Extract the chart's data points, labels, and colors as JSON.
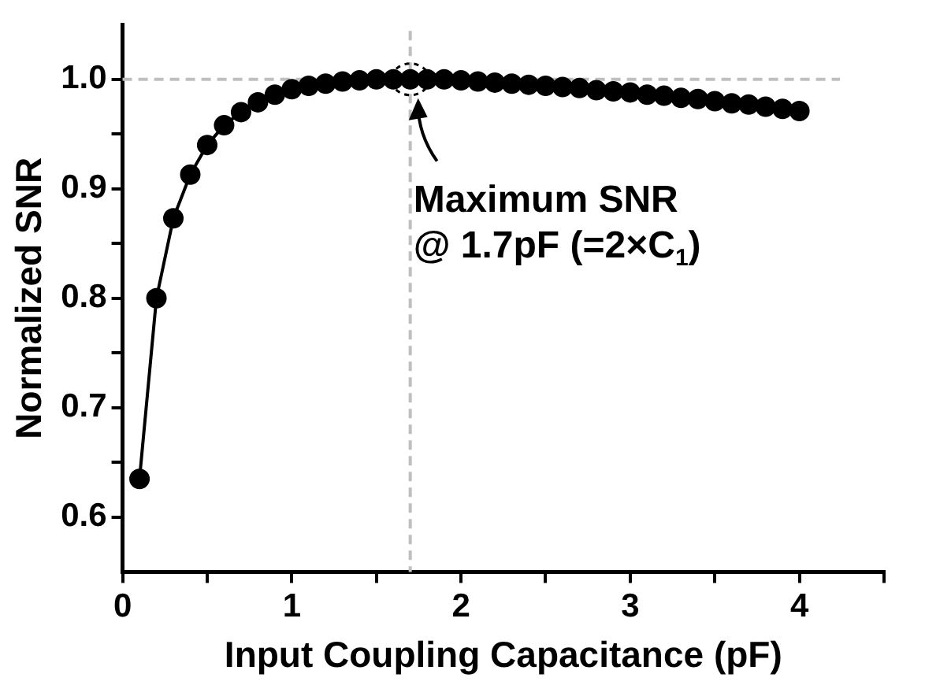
{
  "chart_data": {
    "type": "line",
    "xlabel": "Input Coupling Capacitance (pF)",
    "ylabel": "Normalized SNR",
    "x": [
      0.1,
      0.2,
      0.3,
      0.4,
      0.5,
      0.6,
      0.7,
      0.8,
      0.9,
      1.0,
      1.1,
      1.2,
      1.3,
      1.4,
      1.5,
      1.6,
      1.7,
      1.8,
      1.9,
      2.0,
      2.1,
      2.2,
      2.3,
      2.4,
      2.5,
      2.6,
      2.7,
      2.8,
      2.9,
      3.0,
      3.1,
      3.2,
      3.3,
      3.4,
      3.5,
      3.6,
      3.7,
      3.8,
      3.9,
      4.0
    ],
    "series": [
      {
        "color": "#000000",
        "values": [
          0.635,
          0.8,
          0.873,
          0.913,
          0.94,
          0.958,
          0.97,
          0.979,
          0.986,
          0.991,
          0.994,
          0.996,
          0.998,
          0.999,
          1.0,
          1.0,
          1.0,
          1.0,
          1.0,
          0.999,
          0.998,
          0.997,
          0.996,
          0.995,
          0.994,
          0.993,
          0.992,
          0.99,
          0.989,
          0.988,
          0.986,
          0.985,
          0.983,
          0.982,
          0.98,
          0.978,
          0.977,
          0.975,
          0.973,
          0.971
        ]
      }
    ],
    "xlim": [
      0,
      4.5
    ],
    "ylim": [
      0.55,
      1.05
    ],
    "xticks": [
      0,
      {
        "value": 0.5,
        "label": null
      },
      1,
      {
        "value": 1.5,
        "label": null
      },
      2,
      {
        "value": 2.5,
        "label": null
      },
      3,
      {
        "value": 3.5,
        "label": null
      },
      4,
      {
        "value": 4.5,
        "label": null
      }
    ],
    "yticks": [
      {
        "value": 0.6,
        "label": "0.6"
      },
      {
        "value": 0.65,
        "label": null
      },
      {
        "value": 0.7,
        "label": "0.7"
      },
      {
        "value": 0.75,
        "label": null
      },
      {
        "value": 0.8,
        "label": "0.8"
      },
      {
        "value": 0.85,
        "label": null
      },
      {
        "value": 0.9,
        "label": "0.9"
      },
      {
        "value": 0.95,
        "label": null
      },
      {
        "value": 1.0,
        "label": "1.0"
      }
    ],
    "ref_lines": [
      {
        "axis": "x",
        "value": 1.7,
        "color": "#bfbfbf",
        "line_style": "dashed"
      },
      {
        "axis": "y",
        "value": 1.0,
        "color": "#bfbfbf",
        "line_style": "dashed"
      }
    ],
    "annotations": [
      {
        "text": "Maximum SNR\n@ 1.7pF (=2×C$_{1}$)",
        "x": 1.7,
        "y": 1.0
      }
    ],
    "marker": "circle",
    "line_style": "solid",
    "grid": false,
    "legend": false
  }
}
